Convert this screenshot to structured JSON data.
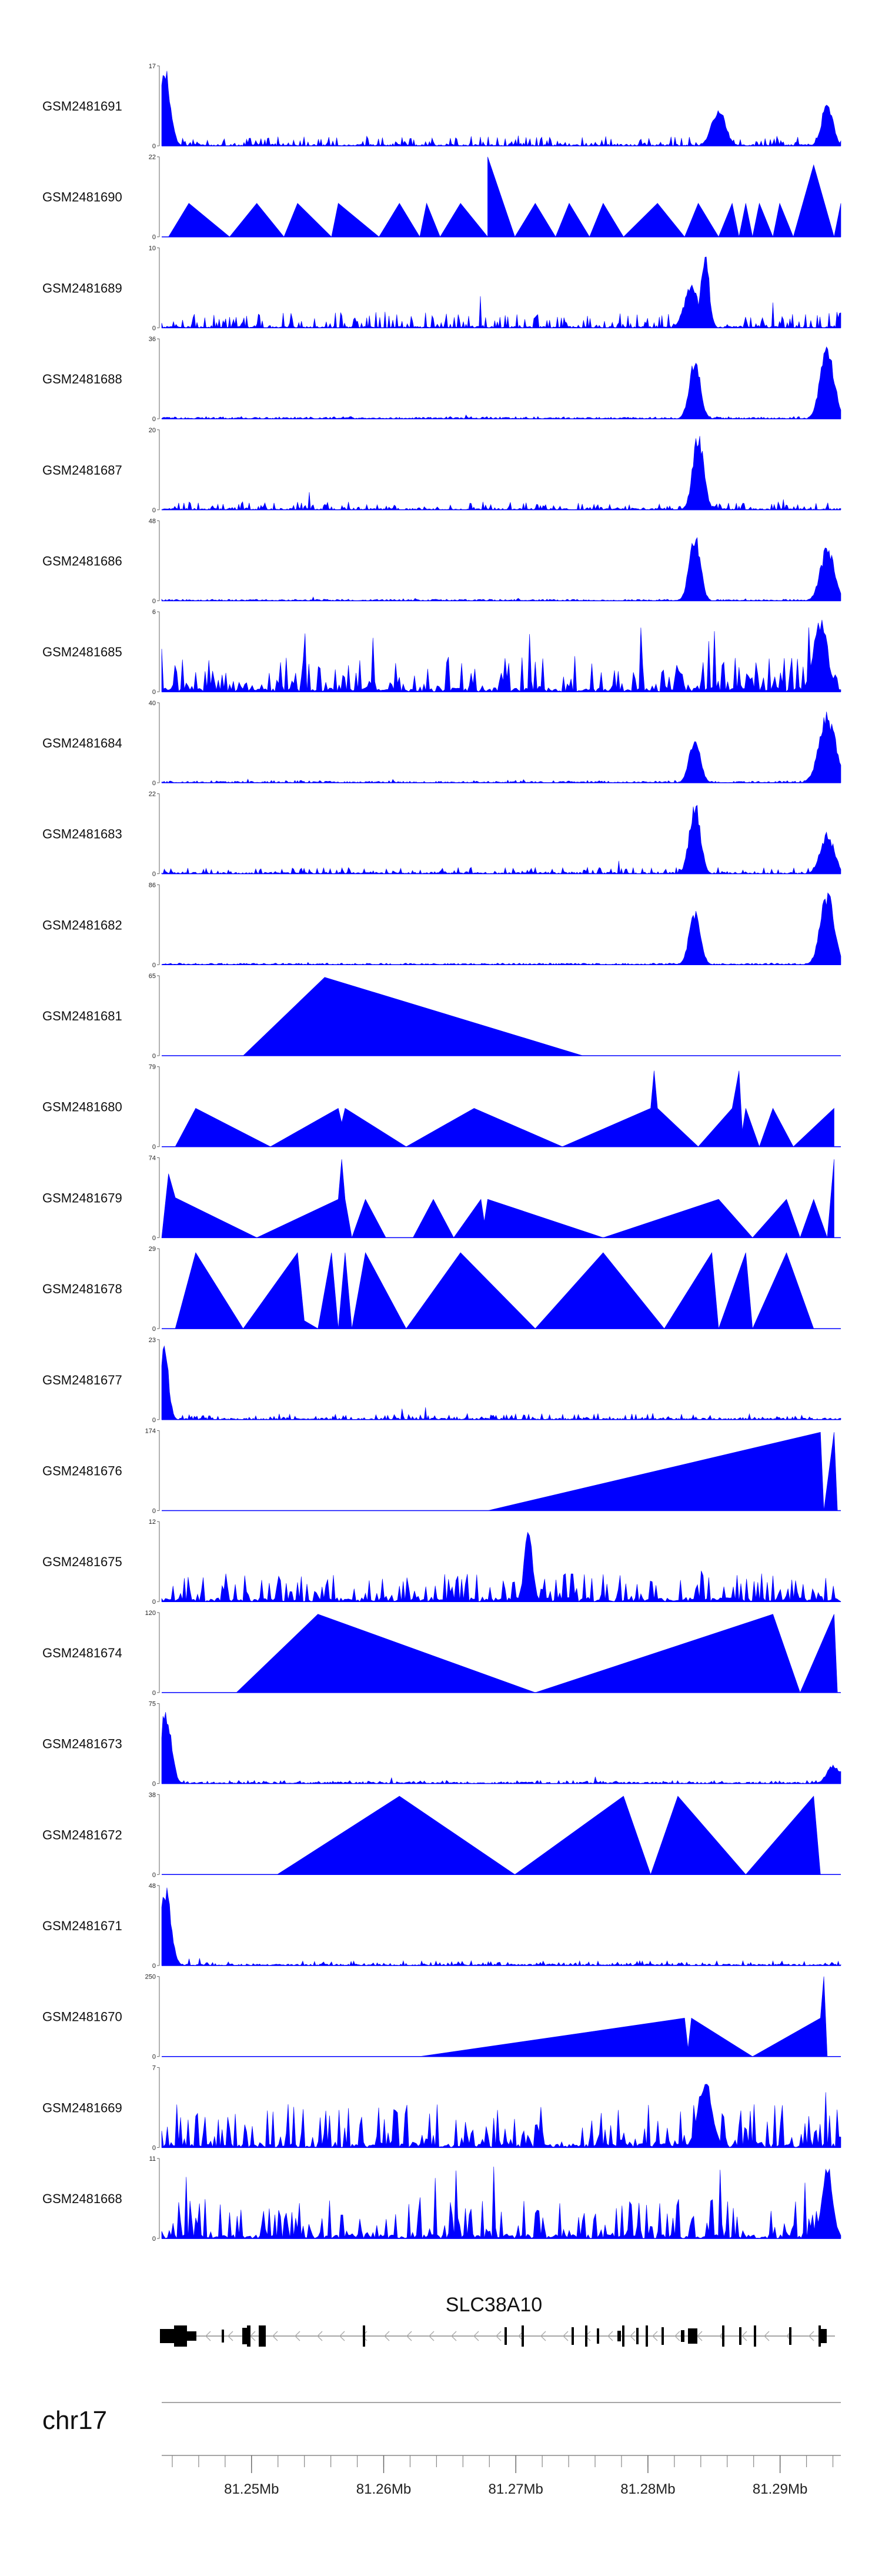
{
  "chart_data": {
    "type": "area",
    "title": "",
    "chromosome": "chr17",
    "gene": "SLC38A10",
    "color": "#0000ff",
    "genomic_range_mb": [
      81.2432,
      81.2946
    ],
    "axis_ticks_mb": [
      "81.25Mb",
      "81.26Mb",
      "81.27Mb",
      "81.28Mb",
      "81.29Mb"
    ],
    "axis_tick_values": [
      81.25,
      81.26,
      81.27,
      81.28,
      81.29
    ],
    "tracks": [
      {
        "name": "GSM2481691",
        "ymax": "17",
        "ymin": "0",
        "kind": "noise",
        "base": 0.12,
        "peaks": [
          [
            0.005,
            0.008,
            1.0
          ],
          [
            0.98,
            0.008,
            0.6
          ],
          [
            0.82,
            0.01,
            0.5
          ]
        ]
      },
      {
        "name": "GSM2481690",
        "ymax": "22",
        "ymin": "0",
        "kind": "tri",
        "points": [
          [
            0.01,
            0
          ],
          [
            0.04,
            0.42
          ],
          [
            0.1,
            0
          ],
          [
            0.14,
            0.42
          ],
          [
            0.18,
            0
          ],
          [
            0.2,
            0.42
          ],
          [
            0.25,
            0
          ],
          [
            0.26,
            0.42
          ],
          [
            0.32,
            0
          ],
          [
            0.35,
            0.42
          ],
          [
            0.38,
            0
          ],
          [
            0.39,
            0.42
          ],
          [
            0.41,
            0
          ],
          [
            0.44,
            0.42
          ],
          [
            0.48,
            0
          ],
          [
            0.48,
            1.0
          ],
          [
            0.52,
            0
          ],
          [
            0.55,
            0.42
          ],
          [
            0.58,
            0
          ],
          [
            0.6,
            0.42
          ],
          [
            0.63,
            0
          ],
          [
            0.65,
            0.42
          ],
          [
            0.68,
            0
          ],
          [
            0.73,
            0.42
          ],
          [
            0.77,
            0
          ],
          [
            0.79,
            0.42
          ],
          [
            0.82,
            0
          ],
          [
            0.84,
            0.42
          ],
          [
            0.85,
            0
          ],
          [
            0.86,
            0.42
          ],
          [
            0.87,
            0
          ],
          [
            0.88,
            0.42
          ],
          [
            0.9,
            0
          ],
          [
            0.91,
            0.42
          ],
          [
            0.93,
            0
          ],
          [
            0.96,
            0.9
          ],
          [
            0.99,
            0
          ],
          [
            1.0,
            0.42
          ]
        ]
      },
      {
        "name": "GSM2481689",
        "ymax": "10",
        "ymin": "0",
        "kind": "noise",
        "base": 0.2,
        "peaks": [
          [
            0.8,
            0.006,
            1.0
          ],
          [
            0.78,
            0.01,
            0.6
          ]
        ]
      },
      {
        "name": "GSM2481688",
        "ymax": "36",
        "ymin": "0",
        "kind": "noise",
        "base": 0.03,
        "peaks": [
          [
            0.785,
            0.008,
            0.8
          ],
          [
            0.98,
            0.01,
            0.95
          ]
        ]
      },
      {
        "name": "GSM2481687",
        "ymax": "20",
        "ymin": "0",
        "kind": "noise",
        "base": 0.1,
        "peaks": [
          [
            0.79,
            0.008,
            1.0
          ]
        ]
      },
      {
        "name": "GSM2481686",
        "ymax": "48",
        "ymin": "0",
        "kind": "noise",
        "base": 0.02,
        "peaks": [
          [
            0.785,
            0.008,
            0.9
          ],
          [
            0.98,
            0.01,
            0.72
          ]
        ]
      },
      {
        "name": "GSM2481685",
        "ymax": "6",
        "ymin": "0",
        "kind": "spiky",
        "base": 0.45,
        "peaks": [
          [
            0.97,
            0.01,
            1.0
          ]
        ]
      },
      {
        "name": "GSM2481684",
        "ymax": "40",
        "ymin": "0",
        "kind": "noise",
        "base": 0.03,
        "peaks": [
          [
            0.785,
            0.008,
            0.6
          ],
          [
            0.98,
            0.012,
            0.92
          ]
        ]
      },
      {
        "name": "GSM2481683",
        "ymax": "22",
        "ymin": "0",
        "kind": "noise",
        "base": 0.08,
        "peaks": [
          [
            0.785,
            0.008,
            0.95
          ],
          [
            0.98,
            0.01,
            0.55
          ]
        ]
      },
      {
        "name": "GSM2481682",
        "ymax": "86",
        "ymin": "0",
        "kind": "noise",
        "base": 0.02,
        "peaks": [
          [
            0.785,
            0.008,
            0.75
          ],
          [
            0.98,
            0.01,
            0.97
          ]
        ]
      },
      {
        "name": "GSM2481681",
        "ymax": "65",
        "ymin": "0",
        "kind": "tri",
        "points": [
          [
            0.12,
            0
          ],
          [
            0.24,
            0.98
          ],
          [
            0.62,
            0
          ]
        ]
      },
      {
        "name": "GSM2481680",
        "ymax": "79",
        "ymin": "0",
        "kind": "tri",
        "points": [
          [
            0.02,
            0
          ],
          [
            0.05,
            0.48
          ],
          [
            0.16,
            0
          ],
          [
            0.26,
            0.48
          ],
          [
            0.265,
            0.3
          ],
          [
            0.27,
            0.48
          ],
          [
            0.36,
            0
          ],
          [
            0.46,
            0.48
          ],
          [
            0.59,
            0
          ],
          [
            0.72,
            0.48
          ],
          [
            0.725,
            0.95
          ],
          [
            0.73,
            0.48
          ],
          [
            0.79,
            0
          ],
          [
            0.84,
            0.48
          ],
          [
            0.85,
            0.95
          ],
          [
            0.855,
            0.2
          ],
          [
            0.86,
            0.48
          ],
          [
            0.88,
            0
          ],
          [
            0.9,
            0.48
          ],
          [
            0.93,
            0
          ],
          [
            0.99,
            0.48
          ]
        ]
      },
      {
        "name": "GSM2481679",
        "ymax": "74",
        "ymin": "0",
        "kind": "tri",
        "points": [
          [
            0,
            0
          ],
          [
            0.01,
            0.8
          ],
          [
            0.02,
            0.5
          ],
          [
            0.14,
            0
          ],
          [
            0.26,
            0.48
          ],
          [
            0.265,
            0.98
          ],
          [
            0.27,
            0.48
          ],
          [
            0.28,
            0
          ],
          [
            0.3,
            0.48
          ],
          [
            0.33,
            0
          ],
          [
            0.37,
            0
          ],
          [
            0.4,
            0.48
          ],
          [
            0.43,
            0
          ],
          [
            0.47,
            0.48
          ],
          [
            0.475,
            0.2
          ],
          [
            0.48,
            0.48
          ],
          [
            0.65,
            0
          ],
          [
            0.82,
            0.48
          ],
          [
            0.87,
            0
          ],
          [
            0.92,
            0.48
          ],
          [
            0.94,
            0
          ],
          [
            0.96,
            0.48
          ],
          [
            0.98,
            0
          ],
          [
            0.99,
            0.98
          ]
        ]
      },
      {
        "name": "GSM2481678",
        "ymax": "29",
        "ymin": "0",
        "kind": "tri",
        "points": [
          [
            0.02,
            0
          ],
          [
            0.05,
            0.95
          ],
          [
            0.12,
            0
          ],
          [
            0.2,
            0.95
          ],
          [
            0.21,
            0.1
          ],
          [
            0.23,
            0
          ],
          [
            0.25,
            0.95
          ],
          [
            0.26,
            0
          ],
          [
            0.27,
            0.95
          ],
          [
            0.28,
            0
          ],
          [
            0.3,
            0.95
          ],
          [
            0.36,
            0
          ],
          [
            0.44,
            0.95
          ],
          [
            0.55,
            0
          ],
          [
            0.65,
            0.95
          ],
          [
            0.74,
            0
          ],
          [
            0.81,
            0.95
          ],
          [
            0.82,
            0
          ],
          [
            0.86,
            0.95
          ],
          [
            0.87,
            0
          ],
          [
            0.92,
            0.95
          ],
          [
            0.96,
            0
          ]
        ]
      },
      {
        "name": "GSM2481677",
        "ymax": "23",
        "ymin": "0",
        "kind": "noise",
        "base": 0.08,
        "peaks": [
          [
            0.004,
            0.006,
            1.0
          ]
        ]
      },
      {
        "name": "GSM2481676",
        "ymax": "174",
        "ymin": "0",
        "kind": "tri",
        "points": [
          [
            0.48,
            0
          ],
          [
            0.97,
            0.98
          ],
          [
            0.975,
            0
          ],
          [
            0.99,
            0.98
          ],
          [
            0.995,
            0
          ]
        ]
      },
      {
        "name": "GSM2481675",
        "ymax": "12",
        "ymin": "0",
        "kind": "spiky",
        "base": 0.35,
        "peaks": [
          [
            0.54,
            0.006,
            0.95
          ]
        ]
      },
      {
        "name": "GSM2481674",
        "ymax": "120",
        "ymin": "0",
        "kind": "tri",
        "points": [
          [
            0.11,
            0
          ],
          [
            0.23,
            0.98
          ],
          [
            0.55,
            0
          ],
          [
            0.9,
            0.98
          ],
          [
            0.94,
            0
          ],
          [
            0.99,
            0.98
          ],
          [
            0.995,
            0
          ]
        ]
      },
      {
        "name": "GSM2481673",
        "ymax": "75",
        "ymin": "0",
        "kind": "noise",
        "base": 0.04,
        "peaks": [
          [
            0.006,
            0.008,
            1.0
          ],
          [
            0.99,
            0.01,
            0.25
          ]
        ]
      },
      {
        "name": "GSM2481672",
        "ymax": "38",
        "ymin": "0",
        "kind": "tri",
        "points": [
          [
            0.17,
            0
          ],
          [
            0.35,
            0.98
          ],
          [
            0.52,
            0
          ],
          [
            0.68,
            0.98
          ],
          [
            0.72,
            0
          ],
          [
            0.76,
            0.98
          ],
          [
            0.86,
            0
          ],
          [
            0.96,
            0.98
          ],
          [
            0.97,
            0
          ],
          [
            0.98,
            0
          ]
        ]
      },
      {
        "name": "GSM2481671",
        "ymax": "48",
        "ymin": "0",
        "kind": "noise",
        "base": 0.06,
        "peaks": [
          [
            0.006,
            0.008,
            1.0
          ]
        ]
      },
      {
        "name": "GSM2481670",
        "ymax": "250",
        "ymin": "0",
        "kind": "tri",
        "points": [
          [
            0.38,
            0
          ],
          [
            0.77,
            0.48
          ],
          [
            0.775,
            0.1
          ],
          [
            0.78,
            0.48
          ],
          [
            0.87,
            0
          ],
          [
            0.97,
            0.48
          ],
          [
            0.975,
            1.0
          ],
          [
            0.98,
            0
          ]
        ]
      },
      {
        "name": "GSM2481669",
        "ymax": "7",
        "ymin": "0",
        "kind": "spiky",
        "base": 0.55,
        "peaks": [
          [
            0.8,
            0.01,
            0.9
          ]
        ]
      },
      {
        "name": "GSM2481668",
        "ymax": "11",
        "ymin": "0",
        "kind": "spiky",
        "base": 0.5,
        "peaks": [
          [
            0.98,
            0.008,
            0.95
          ]
        ]
      }
    ]
  }
}
